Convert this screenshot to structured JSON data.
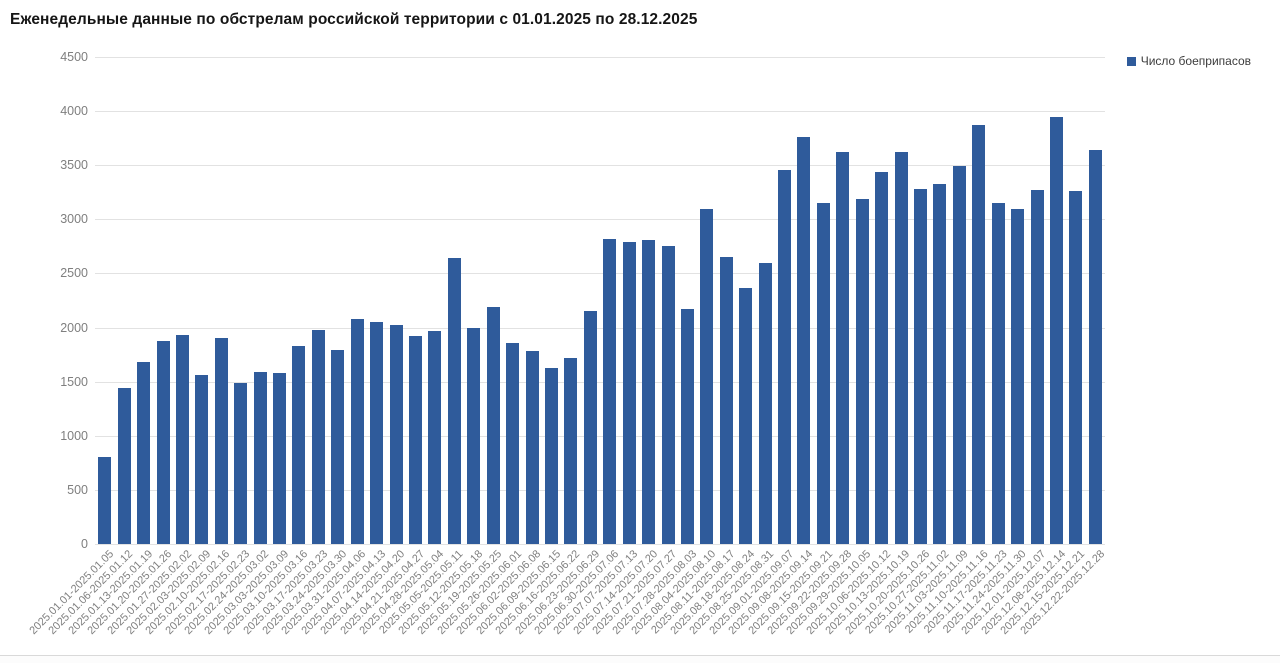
{
  "title": "Еженедельные данные по обстрелам российской территории с 01.01.2025 по 28.12.2025",
  "legend": {
    "label": "Число боеприпасов",
    "swatch_color": "#2f5b9b"
  },
  "colors": {
    "bar": "#2f5b9b",
    "gridline": "#e2e2e2",
    "tick_text": "#808080",
    "title_text": "#151515",
    "background": "#ffffff"
  },
  "chart_data": {
    "type": "bar",
    "title": "Еженедельные данные по обстрелам российской территории с 01.01.2025 по 28.12.2025",
    "series_name": "Число боеприпасов",
    "xlabel": "",
    "ylabel": "",
    "ylim": [
      0,
      4500
    ],
    "yticks": [
      0,
      500,
      1000,
      1500,
      2000,
      2500,
      3000,
      3500,
      4000,
      4500
    ],
    "grid": "horizontal",
    "legend_position": "top-right",
    "bar_color": "#2f5b9b",
    "categories": [
      "2025.01.01-2025.01.05",
      "2025.01.06-2025.01.12",
      "2025.01.13-2025.01.19",
      "2025.01.20-2025.01.26",
      "2025.01.27-2025.02.02",
      "2025.02.03-2025.02.09",
      "2025.02.10-2025.02.16",
      "2025.02.17-2025.02.23",
      "2025.02.24-2025.03.02",
      "2025.03.03-2025.03.09",
      "2025.03.10-2025.03.16",
      "2025.03.17-2025.03.23",
      "2025.03.24-2025.03.30",
      "2025.03.31-2025.04.06",
      "2025.04.07-2025.04.13",
      "2025.04.14-2025.04.20",
      "2025.04.21-2025.04.27",
      "2025.04.28-2025.05.04",
      "2025.05.05-2025.05.11",
      "2025.05.12-2025.05.18",
      "2025.05.19-2025.05.25",
      "2025.05.26-2025.06.01",
      "2025.06.02-2025.06.08",
      "2025.06.09-2025.06.15",
      "2025.06.16-2025.06.22",
      "2025.06.23-2025.06.29",
      "2025.06.30-2025.07.06",
      "2025.07.07-2025.07.13",
      "2025.07.14-2025.07.20",
      "2025.07.21-2025.07.27",
      "2025.07.28-2025.08.03",
      "2025.08.04-2025.08.10",
      "2025.08.11-2025.08.17",
      "2025.08.18-2025.08.24",
      "2025.08.25-2025.08.31",
      "2025.09.01-2025.09.07",
      "2025.09.08-2025.09.14",
      "2025.09.15-2025.09.21",
      "2025.09.22-2025.09.28",
      "2025.09.29-2025.10.05",
      "2025.10.06-2025.10.12",
      "2025.10.13-2025.10.19",
      "2025.10.20-2025.10.26",
      "2025.10.27-2025.11.02",
      "2025.11.03-2025.11.09",
      "2025.11.10-2025.11.16",
      "2025.11.17-2025.11.23",
      "2025.11.24-2025.11.30",
      "2025.12.01-2025.12.07",
      "2025.12.08-2025.12.14",
      "2025.12.15-2025.12.21",
      "2025.12.22-2025.12.28"
    ],
    "values": [
      800,
      1440,
      1680,
      1880,
      1930,
      1560,
      1900,
      1490,
      1590,
      1580,
      1830,
      1980,
      1790,
      2080,
      2050,
      2020,
      1920,
      1970,
      2640,
      2000,
      2190,
      1860,
      1780,
      1630,
      1720,
      2150,
      2820,
      2790,
      2810,
      2750,
      2170,
      3100,
      2650,
      2370,
      2600,
      3460,
      3760,
      3150,
      3620,
      3190,
      3440,
      3620,
      3280,
      3330,
      3490,
      3870,
      3150,
      3100,
      3270,
      3950,
      3260,
      3640
    ]
  }
}
